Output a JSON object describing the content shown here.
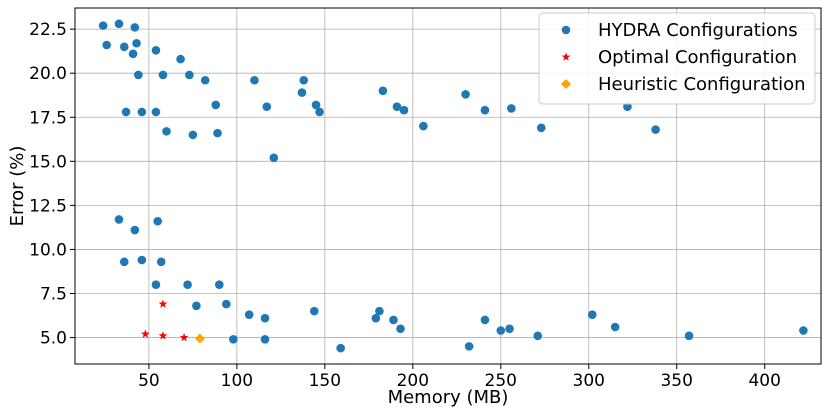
{
  "chart_data": {
    "type": "scatter",
    "xlabel": "Memory (MB)",
    "ylabel": "Error (%)",
    "xlim": [
      8,
      432
    ],
    "ylim": [
      3.5,
      23.7
    ],
    "xticks": [
      50,
      100,
      150,
      200,
      250,
      300,
      350,
      400
    ],
    "yticks": [
      5.0,
      7.5,
      10.0,
      12.5,
      15.0,
      17.5,
      20.0,
      22.5
    ],
    "xtick_labels": [
      "50",
      "100",
      "150",
      "200",
      "250",
      "300",
      "350",
      "400"
    ],
    "ytick_labels": [
      "5.0",
      "7.5",
      "10.0",
      "12.5",
      "15.0",
      "17.5",
      "20.0",
      "22.5"
    ],
    "grid": true,
    "legend_position": "top-right",
    "series": [
      {
        "name": "HYDRA Configurations",
        "marker": "circle",
        "color": "#1f77b4",
        "points": [
          [
            24,
            22.7
          ],
          [
            33,
            22.8
          ],
          [
            42,
            22.6
          ],
          [
            26,
            21.6
          ],
          [
            36,
            21.5
          ],
          [
            43,
            21.7
          ],
          [
            41,
            21.1
          ],
          [
            54,
            21.3
          ],
          [
            68,
            20.8
          ],
          [
            44,
            19.9
          ],
          [
            58,
            19.9
          ],
          [
            73,
            19.9
          ],
          [
            82,
            19.6
          ],
          [
            110,
            19.6
          ],
          [
            138,
            19.6
          ],
          [
            137,
            18.9
          ],
          [
            183,
            19.0
          ],
          [
            230,
            18.8
          ],
          [
            88,
            18.2
          ],
          [
            117,
            18.1
          ],
          [
            145,
            18.2
          ],
          [
            191,
            18.1
          ],
          [
            256,
            18.0
          ],
          [
            322,
            18.1
          ],
          [
            37,
            17.8
          ],
          [
            46,
            17.8
          ],
          [
            54,
            17.8
          ],
          [
            147,
            17.8
          ],
          [
            195,
            17.9
          ],
          [
            241,
            17.9
          ],
          [
            60,
            16.7
          ],
          [
            75,
            16.5
          ],
          [
            89,
            16.6
          ],
          [
            206,
            17.0
          ],
          [
            273,
            16.9
          ],
          [
            338,
            16.8
          ],
          [
            121,
            15.2
          ],
          [
            33,
            11.7
          ],
          [
            55,
            11.6
          ],
          [
            42,
            11.1
          ],
          [
            36,
            9.3
          ],
          [
            46,
            9.4
          ],
          [
            57,
            9.3
          ],
          [
            54,
            8.0
          ],
          [
            72,
            8.0
          ],
          [
            90,
            8.0
          ],
          [
            77,
            6.8
          ],
          [
            94,
            6.9
          ],
          [
            107,
            6.3
          ],
          [
            116,
            6.1
          ],
          [
            144,
            6.5
          ],
          [
            179,
            6.1
          ],
          [
            181,
            6.5
          ],
          [
            189,
            6.0
          ],
          [
            241,
            6.0
          ],
          [
            302,
            6.3
          ],
          [
            193,
            5.5
          ],
          [
            250,
            5.4
          ],
          [
            255,
            5.5
          ],
          [
            315,
            5.6
          ],
          [
            422,
            5.4
          ],
          [
            98,
            4.9
          ],
          [
            116,
            4.9
          ],
          [
            159,
            4.4
          ],
          [
            232,
            4.5
          ],
          [
            271,
            5.1
          ],
          [
            357,
            5.1
          ]
        ]
      },
      {
        "name": "Optimal Configuration",
        "marker": "star",
        "color": "#ff0000",
        "points": [
          [
            48,
            5.2
          ],
          [
            58,
            5.1
          ],
          [
            58,
            6.9
          ],
          [
            70,
            5.0
          ]
        ]
      },
      {
        "name": "Heuristic Configuration",
        "marker": "diamond",
        "color": "#ffa500",
        "points": [
          [
            79,
            4.95
          ]
        ]
      }
    ]
  }
}
